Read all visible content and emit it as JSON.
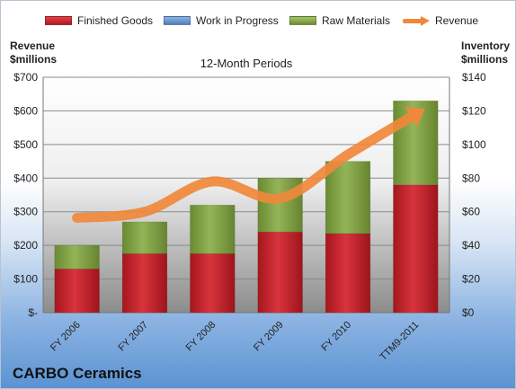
{
  "chart_data": {
    "type": "bar",
    "title": "12-Month Periods",
    "categories": [
      "FY 2006",
      "FY 2007",
      "FY 2008",
      "FY 2009",
      "FY 2010",
      "TTM9-2011"
    ],
    "series": [
      {
        "name": "Finished Goods",
        "axis": "right",
        "stack": true,
        "color": "#c8232c",
        "values": [
          26,
          35,
          35,
          48,
          47,
          76
        ]
      },
      {
        "name": "Work in Progress",
        "axis": "right",
        "stack": true,
        "color": "#4f81bd",
        "values": [
          0,
          0,
          0,
          0,
          0,
          0
        ]
      },
      {
        "name": "Raw Materials",
        "axis": "right",
        "stack": true,
        "color": "#77933c",
        "values": [
          14,
          19,
          29,
          32,
          43,
          50
        ]
      },
      {
        "name": "Revenue",
        "axis": "left",
        "type": "line",
        "color": "#f0883b",
        "values": [
          282,
          300,
          390,
          340,
          470,
          590
        ]
      }
    ],
    "ylabel_left": [
      "Revenue",
      "$millions"
    ],
    "ylabel_right": [
      "Inventory",
      "$millions"
    ],
    "ylim_left": [
      0,
      700
    ],
    "ylim_right": [
      0,
      140
    ],
    "yticks_left": [
      "$-",
      "$100",
      "$200",
      "$300",
      "$400",
      "$500",
      "$600",
      "$700"
    ],
    "yticks_right": [
      "$0",
      "$20",
      "$40",
      "$60",
      "$80",
      "$100",
      "$120",
      "$140"
    ],
    "grid": true,
    "legend": "top"
  },
  "company": "CARBO Ceramics"
}
